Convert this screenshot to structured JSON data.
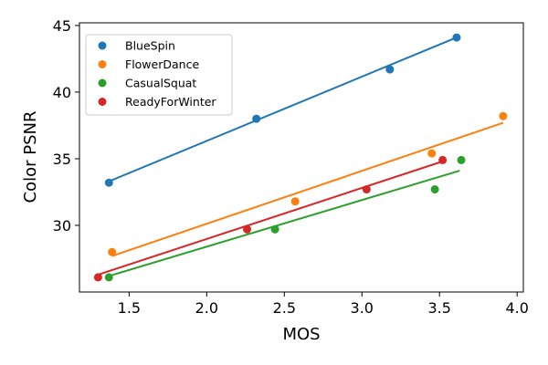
{
  "chart_data": {
    "type": "scatter",
    "title": "",
    "xlabel": "MOS",
    "ylabel": "Color PSNR",
    "xlim": [
      1.18,
      4.04
    ],
    "ylim": [
      25.0,
      45.2
    ],
    "xticks": [
      1.5,
      2.0,
      2.5,
      3.0,
      3.5,
      4.0
    ],
    "xtick_labels": [
      "1.5",
      "2.0",
      "2.5",
      "3.0",
      "3.5",
      "4.0"
    ],
    "yticks": [
      30,
      35,
      40,
      45
    ],
    "ytick_labels": [
      "30",
      "35",
      "40",
      "45"
    ],
    "grid": false,
    "legend_position": "top-left",
    "series": [
      {
        "name": "BlueSpin",
        "color": "#1f77b4",
        "x": [
          1.37,
          2.32,
          3.18,
          3.61
        ],
        "y": [
          33.2,
          38.0,
          41.7,
          44.1
        ],
        "fit": [
          [
            1.37,
            33.3
          ],
          [
            3.61,
            44.1
          ]
        ]
      },
      {
        "name": "FlowerDance",
        "color": "#ff7f0e",
        "x": [
          1.39,
          2.57,
          3.45,
          3.91
        ],
        "y": [
          28.0,
          31.8,
          35.4,
          38.2
        ],
        "fit": [
          [
            1.39,
            27.7
          ],
          [
            3.91,
            37.7
          ]
        ]
      },
      {
        "name": "CasualSquat",
        "color": "#2ca02c",
        "x": [
          1.37,
          2.44,
          3.47,
          3.64
        ],
        "y": [
          26.1,
          29.7,
          32.7,
          34.9
        ],
        "fit": [
          [
            1.37,
            26.2
          ],
          [
            3.63,
            34.1
          ]
        ]
      },
      {
        "name": "ReadyForWinter",
        "color": "#d62728",
        "x": [
          1.3,
          2.26,
          3.03,
          3.52
        ],
        "y": [
          26.1,
          29.7,
          32.7,
          34.9
        ],
        "fit": [
          [
            1.3,
            26.3
          ],
          [
            3.52,
            34.8
          ]
        ]
      }
    ]
  }
}
